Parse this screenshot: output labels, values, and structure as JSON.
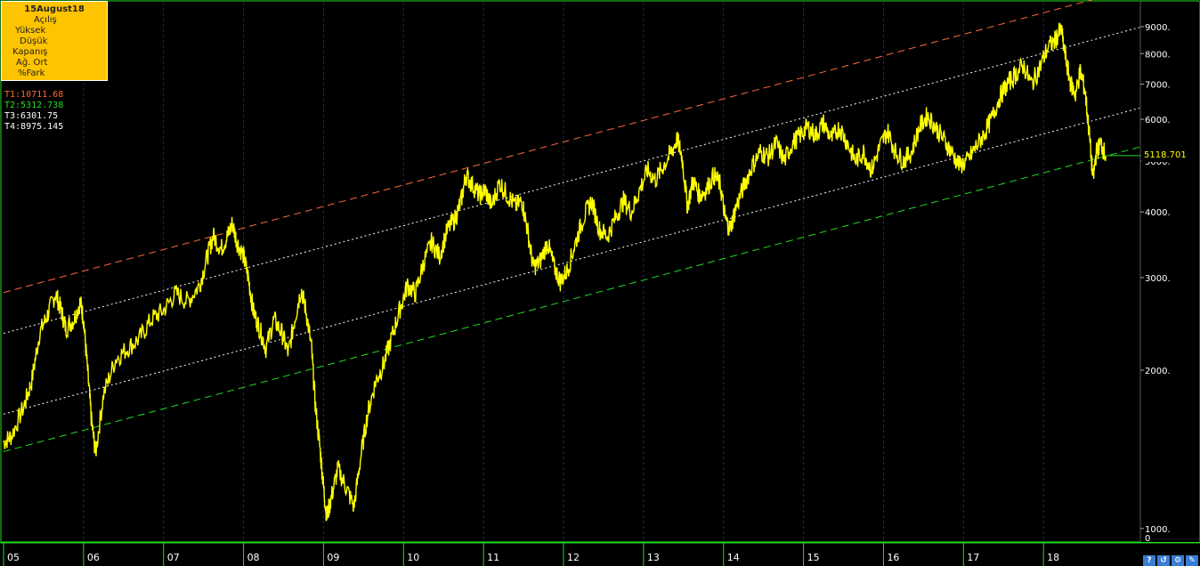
{
  "info_box": {
    "date": "15August18",
    "fields": [
      "Açılış",
      "Yüksek",
      "Düşük",
      "Kapanış",
      "Ağ. Ort",
      "%Fark"
    ]
  },
  "trendlines": [
    {
      "label": "T1:10711.68",
      "color": "#ff6a3a",
      "dash": "long",
      "start": 2810,
      "end": 10711.68
    },
    {
      "label": "T2:5312.738",
      "color": "#22dd22",
      "dash": "long",
      "start": 1400,
      "end": 5312.738
    },
    {
      "label": "T3:6301.75",
      "color": "#ffffff",
      "dash": "dot",
      "start": 1650,
      "end": 6301.75
    },
    {
      "label": "T4:8975.145",
      "color": "#ffffff",
      "dash": "dot",
      "start": 2350,
      "end": 8975.145
    }
  ],
  "last_price": {
    "label": "5118.701",
    "value": 5118.701,
    "line_color": "#22dd22"
  },
  "bottom_icons": [
    "?",
    "↺",
    "⚙",
    "✎"
  ],
  "chart_data": {
    "type": "line",
    "title": "",
    "yscale": "log",
    "ylim": [
      950,
      10000
    ],
    "y_ticks": [
      {
        "value": 1000,
        "label": "1000."
      },
      {
        "value": 2000,
        "label": "2000."
      },
      {
        "value": 3000,
        "label": "3000."
      },
      {
        "value": 4000,
        "label": "4000."
      },
      {
        "value": 5000,
        "label": "5000."
      },
      {
        "value": 6000,
        "label": "6000."
      },
      {
        "value": 7000,
        "label": "7000."
      },
      {
        "value": 8000,
        "label": "8000."
      },
      {
        "value": 9000,
        "label": "9000."
      }
    ],
    "y_extra_label": "0",
    "x_ticks": [
      "05",
      "06",
      "07",
      "08",
      "09",
      "10",
      "11",
      "12",
      "13",
      "14",
      "15",
      "16",
      "17",
      "18"
    ],
    "xlim": [
      2005.0,
      2019.2
    ],
    "series": [
      {
        "color": "#ffff00",
        "points": [
          [
            2005.0,
            1460
          ],
          [
            2005.1,
            1500
          ],
          [
            2005.25,
            1700
          ],
          [
            2005.35,
            1900
          ],
          [
            2005.45,
            2350
          ],
          [
            2005.55,
            2550
          ],
          [
            2005.65,
            2800
          ],
          [
            2005.72,
            2600
          ],
          [
            2005.78,
            2400
          ],
          [
            2005.88,
            2500
          ],
          [
            2005.96,
            2700
          ],
          [
            2006.0,
            2500
          ],
          [
            2006.05,
            2000
          ],
          [
            2006.1,
            1600
          ],
          [
            2006.15,
            1390
          ],
          [
            2006.25,
            1800
          ],
          [
            2006.4,
            2100
          ],
          [
            2006.55,
            2200
          ],
          [
            2006.7,
            2300
          ],
          [
            2006.85,
            2500
          ],
          [
            2007.0,
            2600
          ],
          [
            2007.15,
            2800
          ],
          [
            2007.3,
            2700
          ],
          [
            2007.45,
            2900
          ],
          [
            2007.55,
            3300
          ],
          [
            2007.62,
            3600
          ],
          [
            2007.72,
            3400
          ],
          [
            2007.8,
            3600
          ],
          [
            2007.86,
            3800
          ],
          [
            2007.92,
            3500
          ],
          [
            2008.0,
            3300
          ],
          [
            2008.06,
            3000
          ],
          [
            2008.12,
            2600
          ],
          [
            2008.2,
            2400
          ],
          [
            2008.28,
            2200
          ],
          [
            2008.38,
            2500
          ],
          [
            2008.48,
            2350
          ],
          [
            2008.56,
            2150
          ],
          [
            2008.64,
            2500
          ],
          [
            2008.72,
            2850
          ],
          [
            2008.78,
            2600
          ],
          [
            2008.85,
            2200
          ],
          [
            2008.9,
            1700
          ],
          [
            2008.96,
            1400
          ],
          [
            2009.0,
            1200
          ],
          [
            2009.04,
            1050
          ],
          [
            2009.1,
            1150
          ],
          [
            2009.18,
            1300
          ],
          [
            2009.28,
            1200
          ],
          [
            2009.38,
            1100
          ],
          [
            2009.46,
            1350
          ],
          [
            2009.55,
            1650
          ],
          [
            2009.65,
            1900
          ],
          [
            2009.75,
            2050
          ],
          [
            2009.85,
            2300
          ],
          [
            2009.95,
            2600
          ],
          [
            2010.05,
            2900
          ],
          [
            2010.15,
            2800
          ],
          [
            2010.25,
            3200
          ],
          [
            2010.35,
            3500
          ],
          [
            2010.45,
            3300
          ],
          [
            2010.55,
            3700
          ],
          [
            2010.65,
            3900
          ],
          [
            2010.72,
            4200
          ],
          [
            2010.78,
            4700
          ],
          [
            2010.86,
            4500
          ],
          [
            2010.95,
            4300
          ],
          [
            2011.02,
            4400
          ],
          [
            2011.1,
            4100
          ],
          [
            2011.2,
            4550
          ],
          [
            2011.3,
            4300
          ],
          [
            2011.4,
            4100
          ],
          [
            2011.48,
            4200
          ],
          [
            2011.55,
            3700
          ],
          [
            2011.62,
            3150
          ],
          [
            2011.7,
            3200
          ],
          [
            2011.8,
            3500
          ],
          [
            2011.88,
            3150
          ],
          [
            2011.96,
            2950
          ],
          [
            2012.05,
            3100
          ],
          [
            2012.15,
            3500
          ],
          [
            2012.25,
            3900
          ],
          [
            2012.35,
            4200
          ],
          [
            2012.45,
            3700
          ],
          [
            2012.55,
            3600
          ],
          [
            2012.65,
            3900
          ],
          [
            2012.75,
            4200
          ],
          [
            2012.85,
            4000
          ],
          [
            2012.95,
            4400
          ],
          [
            2013.05,
            4800
          ],
          [
            2013.15,
            4600
          ],
          [
            2013.25,
            4900
          ],
          [
            2013.35,
            5200
          ],
          [
            2013.42,
            5500
          ],
          [
            2013.48,
            5100
          ],
          [
            2013.55,
            4100
          ],
          [
            2013.62,
            4600
          ],
          [
            2013.7,
            4300
          ],
          [
            2013.78,
            4400
          ],
          [
            2013.88,
            4700
          ],
          [
            2013.96,
            4500
          ],
          [
            2014.02,
            3900
          ],
          [
            2014.08,
            3700
          ],
          [
            2014.16,
            4100
          ],
          [
            2014.26,
            4500
          ],
          [
            2014.36,
            4900
          ],
          [
            2014.46,
            5200
          ],
          [
            2014.56,
            5100
          ],
          [
            2014.66,
            5400
          ],
          [
            2014.76,
            5000
          ],
          [
            2014.86,
            5400
          ],
          [
            2014.96,
            5600
          ],
          [
            2015.05,
            5800
          ],
          [
            2015.15,
            5600
          ],
          [
            2015.25,
            5900
          ],
          [
            2015.35,
            5500
          ],
          [
            2015.45,
            5800
          ],
          [
            2015.55,
            5400
          ],
          [
            2015.65,
            5000
          ],
          [
            2015.75,
            5200
          ],
          [
            2015.85,
            4800
          ],
          [
            2015.95,
            5300
          ],
          [
            2016.05,
            5700
          ],
          [
            2016.15,
            5200
          ],
          [
            2016.25,
            5000
          ],
          [
            2016.35,
            5200
          ],
          [
            2016.45,
            5800
          ],
          [
            2016.55,
            6100
          ],
          [
            2016.65,
            5800
          ],
          [
            2016.75,
            5500
          ],
          [
            2016.85,
            5200
          ],
          [
            2016.95,
            4900
          ],
          [
            2017.05,
            5000
          ],
          [
            2017.15,
            5300
          ],
          [
            2017.25,
            5600
          ],
          [
            2017.35,
            6000
          ],
          [
            2017.45,
            6600
          ],
          [
            2017.55,
            7000
          ],
          [
            2017.65,
            7300
          ],
          [
            2017.75,
            7600
          ],
          [
            2017.85,
            7000
          ],
          [
            2017.95,
            7500
          ],
          [
            2018.05,
            8200
          ],
          [
            2018.15,
            8500
          ],
          [
            2018.22,
            8900
          ],
          [
            2018.28,
            7800
          ],
          [
            2018.34,
            7000
          ],
          [
            2018.4,
            6700
          ],
          [
            2018.46,
            7400
          ],
          [
            2018.52,
            6800
          ],
          [
            2018.57,
            5700
          ],
          [
            2018.62,
            4600
          ],
          [
            2018.66,
            5200
          ],
          [
            2018.72,
            5400
          ],
          [
            2018.78,
            5100
          ]
        ]
      }
    ]
  }
}
